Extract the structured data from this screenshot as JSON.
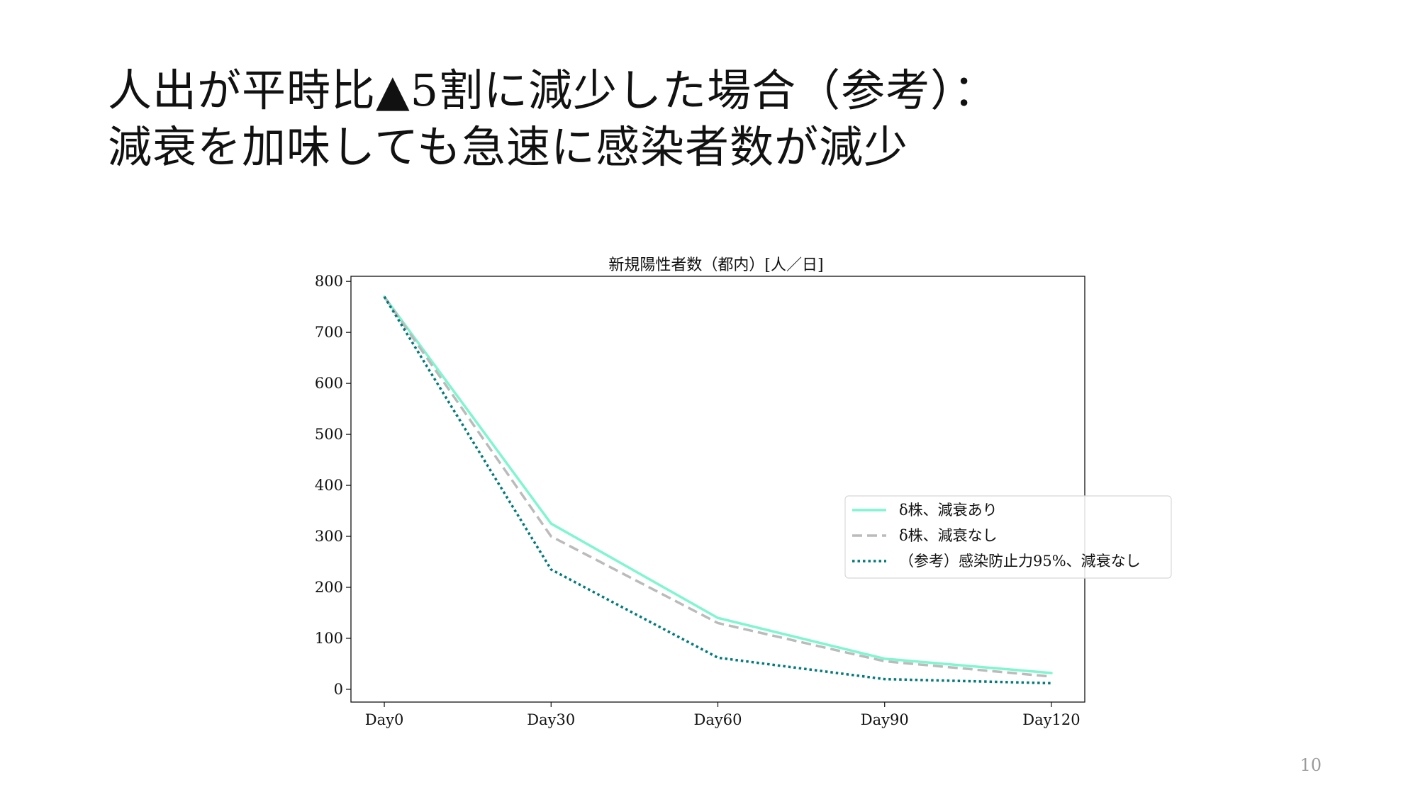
{
  "slide": {
    "title_line1": "人出が平時比▲5割に減少した場合（参考）：",
    "title_line2": "減衰を加味しても急速に感染者数が減少",
    "page_number": "10"
  },
  "chart_data": {
    "type": "line",
    "title": "新規陽性者数（都内）[人／日]",
    "xlabel": "",
    "ylabel": "",
    "categories": [
      "Day0",
      "Day30",
      "Day60",
      "Day90",
      "Day120"
    ],
    "x": [
      0,
      30,
      60,
      90,
      120
    ],
    "xlim": [
      -6,
      126
    ],
    "ylim": [
      -25,
      810
    ],
    "yticks": [
      0,
      100,
      200,
      300,
      400,
      500,
      600,
      700,
      800
    ],
    "grid": false,
    "legend_position": "center-right",
    "series": [
      {
        "name": "δ株、減衰あり",
        "style": "solid",
        "color": "#7ff5d0",
        "values": [
          770,
          325,
          140,
          60,
          32
        ]
      },
      {
        "name": "δ株、減衰なし",
        "style": "dashed",
        "color": "#bbbbbb",
        "values": [
          770,
          300,
          130,
          55,
          25
        ]
      },
      {
        "name": "（参考）感染防止力95%、減衰なし",
        "style": "dotted",
        "color": "#007a7a",
        "values": [
          770,
          235,
          62,
          20,
          12
        ]
      }
    ]
  }
}
